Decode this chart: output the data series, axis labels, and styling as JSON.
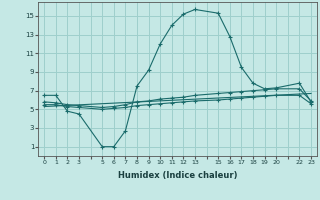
{
  "xlabel": "Humidex (Indice chaleur)",
  "background_color": "#c5e8e5",
  "grid_color": "#9ecfcc",
  "line_color": "#1a6b6b",
  "x_ticks": [
    0,
    1,
    2,
    3,
    4,
    5,
    6,
    7,
    8,
    9,
    10,
    11,
    12,
    13,
    14,
    15,
    16,
    17,
    18,
    19,
    20,
    21,
    22,
    23
  ],
  "x_tick_labels": [
    "0",
    "1",
    "2",
    "3",
    "",
    "5",
    "6",
    "7",
    "8",
    "9",
    "10",
    "11",
    "12",
    "13",
    "",
    "15",
    "16",
    "17",
    "18",
    "19",
    "20",
    "",
    "22",
    "23"
  ],
  "ylim": [
    0,
    16.5
  ],
  "xlim": [
    -0.5,
    23.5
  ],
  "yticks": [
    1,
    3,
    5,
    7,
    9,
    11,
    13,
    15
  ],
  "series": [
    {
      "x": [
        0,
        1,
        2,
        3,
        5,
        6,
        7,
        8,
        9,
        10,
        11,
        12,
        13,
        15,
        16,
        17,
        18,
        19,
        20,
        22,
        23
      ],
      "y": [
        6.5,
        6.5,
        4.8,
        4.5,
        1.0,
        1.0,
        2.7,
        7.5,
        9.2,
        12.0,
        14.0,
        15.2,
        15.7,
        15.3,
        12.8,
        9.5,
        7.8,
        7.2,
        7.3,
        7.8,
        5.8
      ],
      "marker": true
    },
    {
      "x": [
        0,
        1,
        2,
        3,
        5,
        6,
        7,
        8,
        9,
        10,
        11,
        12,
        13,
        15,
        16,
        17,
        18,
        19,
        20,
        22,
        23
      ],
      "y": [
        5.8,
        5.7,
        5.5,
        5.4,
        5.2,
        5.3,
        5.5,
        5.8,
        5.9,
        6.1,
        6.2,
        6.3,
        6.5,
        6.7,
        6.8,
        6.9,
        7.0,
        7.1,
        7.2,
        7.2,
        5.9
      ],
      "marker": true
    },
    {
      "x": [
        0,
        1,
        2,
        3,
        5,
        6,
        7,
        8,
        9,
        10,
        11,
        12,
        13,
        15,
        16,
        17,
        18,
        19,
        20,
        22,
        23
      ],
      "y": [
        5.5,
        5.5,
        5.3,
        5.2,
        5.0,
        5.1,
        5.2,
        5.4,
        5.5,
        5.6,
        5.7,
        5.8,
        5.9,
        6.0,
        6.1,
        6.2,
        6.3,
        6.4,
        6.5,
        6.5,
        5.6
      ],
      "marker": true
    },
    {
      "x": [
        0,
        23
      ],
      "y": [
        5.3,
        6.7
      ],
      "marker": false
    }
  ]
}
